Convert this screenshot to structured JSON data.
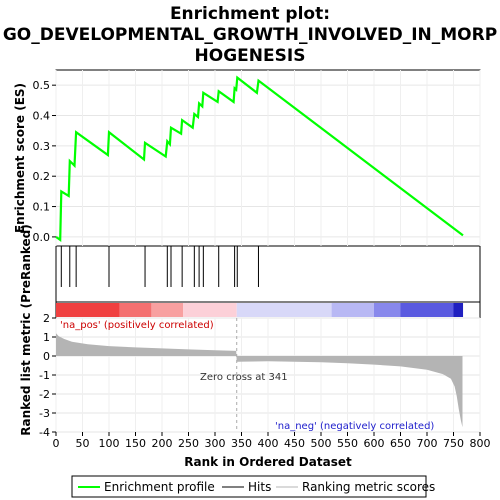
{
  "title_line1": "Enrichment plot:",
  "title_line2": "GO_DEVELOPMENTAL_GROWTH_INVOLVED_IN_MORP",
  "title_line3": "HOGENESIS",
  "chart_data": {
    "type": "line",
    "enrichment": {
      "ylabel": "Enrichment score (ES)",
      "ylim": [
        -0.03,
        0.55
      ],
      "yticks": [
        0.0,
        0.1,
        0.2,
        0.3,
        0.4,
        0.5
      ],
      "points": [
        [
          0,
          0.0
        ],
        [
          8,
          -0.01
        ],
        [
          10,
          0.15
        ],
        [
          24,
          0.135
        ],
        [
          26,
          0.25
        ],
        [
          35,
          0.235
        ],
        [
          38,
          0.345
        ],
        [
          98,
          0.27
        ],
        [
          100,
          0.345
        ],
        [
          166,
          0.255
        ],
        [
          168,
          0.31
        ],
        [
          207,
          0.265
        ],
        [
          210,
          0.315
        ],
        [
          215,
          0.305
        ],
        [
          217,
          0.36
        ],
        [
          236,
          0.34
        ],
        [
          238,
          0.385
        ],
        [
          258,
          0.36
        ],
        [
          261,
          0.405
        ],
        [
          268,
          0.395
        ],
        [
          270,
          0.44
        ],
        [
          276,
          0.43
        ],
        [
          278,
          0.475
        ],
        [
          305,
          0.445
        ],
        [
          307,
          0.48
        ],
        [
          335,
          0.445
        ],
        [
          337,
          0.49
        ],
        [
          340,
          0.485
        ],
        [
          342,
          0.525
        ],
        [
          379,
          0.475
        ],
        [
          382,
          0.515
        ],
        [
          768,
          0.005
        ]
      ],
      "color": "#00ff00"
    },
    "hits": [
      10,
      26,
      38,
      100,
      168,
      210,
      217,
      238,
      261,
      270,
      278,
      307,
      337,
      342,
      382
    ],
    "ranked": {
      "ylabel": "Ranked list metric (PreRanked)",
      "ylim": [
        -4,
        2
      ],
      "yticks": [
        -4,
        -3,
        -2,
        -1,
        0,
        1,
        2
      ],
      "xlabel": "Rank in Ordered Dataset",
      "xlim": [
        0,
        800
      ],
      "xticks": [
        0,
        50,
        100,
        150,
        200,
        250,
        300,
        350,
        400,
        450,
        500,
        550,
        600,
        650,
        700,
        750,
        800
      ],
      "n": 768,
      "zero_cross": 341,
      "metric_points": [
        [
          0,
          1.2
        ],
        [
          5,
          1.05
        ],
        [
          15,
          0.9
        ],
        [
          30,
          0.75
        ],
        [
          60,
          0.62
        ],
        [
          100,
          0.52
        ],
        [
          150,
          0.45
        ],
        [
          200,
          0.4
        ],
        [
          250,
          0.35
        ],
        [
          300,
          0.3
        ],
        [
          340,
          0.27
        ],
        [
          341,
          -0.3
        ],
        [
          400,
          -0.28
        ],
        [
          450,
          -0.3
        ],
        [
          500,
          -0.33
        ],
        [
          550,
          -0.38
        ],
        [
          600,
          -0.45
        ],
        [
          650,
          -0.55
        ],
        [
          700,
          -0.72
        ],
        [
          730,
          -0.95
        ],
        [
          745,
          -1.2
        ],
        [
          752,
          -1.6
        ],
        [
          756,
          -2.1
        ],
        [
          760,
          -2.8
        ],
        [
          764,
          -3.4
        ],
        [
          767,
          -3.75
        ]
      ],
      "fill_color": "#b4b4b4"
    },
    "heatmap_bands": [
      {
        "from": 0,
        "to": 120,
        "color": "#f04040"
      },
      {
        "from": 120,
        "to": 180,
        "color": "#f47070"
      },
      {
        "from": 180,
        "to": 240,
        "color": "#f8a0a0"
      },
      {
        "from": 240,
        "to": 341,
        "color": "#fcd0d8"
      },
      {
        "from": 341,
        "to": 520,
        "color": "#d8d8f8"
      },
      {
        "from": 520,
        "to": 600,
        "color": "#b8b8f4"
      },
      {
        "from": 600,
        "to": 650,
        "color": "#8888ec"
      },
      {
        "from": 650,
        "to": 750,
        "color": "#5a5ae0"
      },
      {
        "from": 750,
        "to": 768,
        "color": "#2020c0"
      }
    ],
    "annotations": {
      "pos_label": "'na_pos' (positively correlated)",
      "neg_label": "'na_neg' (negatively correlated)",
      "zero_label": "Zero cross at 341"
    },
    "legend": {
      "placement": "bottom",
      "items": [
        {
          "label": "Enrichment profile",
          "color": "#00ff00"
        },
        {
          "label": "Hits",
          "color": "#000000"
        },
        {
          "label": "Ranking metric scores",
          "color": "#b4b4b4"
        }
      ]
    }
  }
}
